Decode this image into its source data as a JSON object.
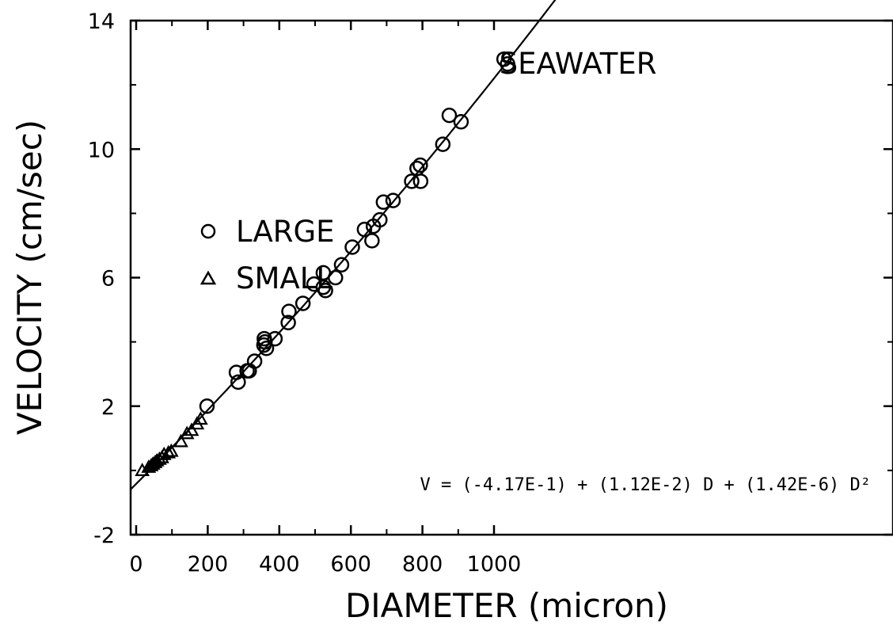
{
  "chart_data": {
    "type": "scatter",
    "title": "SEAWATER",
    "xlabel": "DIAMETER  (micron)",
    "ylabel": "VELOCITY  (cm/sec)",
    "xlim": [
      0,
      1060
    ],
    "ylim": [
      -2,
      14
    ],
    "xticks": [
      0,
      200,
      400,
      600,
      800,
      1000
    ],
    "yticks": [
      -2,
      2,
      6,
      10,
      14
    ],
    "legend_position": "left-center",
    "equation": "V = (-4.17E-1) + (1.12E-2) D + (1.42E-6) D²",
    "fit": {
      "c0": -0.417,
      "c1": 0.0112,
      "c2": 1.42e-06
    },
    "series": [
      {
        "name": "LARGE",
        "marker": "circle",
        "points": [
          [
            198,
            2.0
          ],
          [
            280,
            3.05
          ],
          [
            285,
            2.75
          ],
          [
            310,
            3.1
          ],
          [
            316,
            3.1
          ],
          [
            331,
            3.4
          ],
          [
            357,
            3.9
          ],
          [
            358,
            4.1
          ],
          [
            360,
            4.0
          ],
          [
            364,
            3.8
          ],
          [
            388,
            4.1
          ],
          [
            425,
            4.6
          ],
          [
            427,
            4.95
          ],
          [
            466,
            5.2
          ],
          [
            497,
            5.8
          ],
          [
            523,
            6.15
          ],
          [
            523,
            5.7
          ],
          [
            529,
            5.6
          ],
          [
            557,
            6.0
          ],
          [
            574,
            6.4
          ],
          [
            604,
            6.95
          ],
          [
            638,
            7.5
          ],
          [
            659,
            7.15
          ],
          [
            663,
            7.6
          ],
          [
            681,
            7.8
          ],
          [
            691,
            8.35
          ],
          [
            718,
            8.4
          ],
          [
            770,
            9.0
          ],
          [
            785,
            9.4
          ],
          [
            794,
            9.5
          ],
          [
            795,
            9.0
          ],
          [
            857,
            10.15
          ],
          [
            875,
            11.05
          ],
          [
            908,
            10.85
          ],
          [
            1028,
            12.8
          ],
          [
            1038,
            12.65
          ]
        ]
      },
      {
        "name": "SMALL",
        "marker": "triangle",
        "points": [
          [
            17,
            0.0
          ],
          [
            35,
            0.1
          ],
          [
            42,
            0.15
          ],
          [
            47,
            0.2
          ],
          [
            53,
            0.25
          ],
          [
            58,
            0.3
          ],
          [
            65,
            0.35
          ],
          [
            72,
            0.4
          ],
          [
            78,
            0.5
          ],
          [
            90,
            0.55
          ],
          [
            98,
            0.6
          ],
          [
            125,
            0.9
          ],
          [
            142,
            1.15
          ],
          [
            155,
            1.25
          ],
          [
            170,
            1.45
          ],
          [
            180,
            1.6
          ]
        ]
      }
    ]
  }
}
